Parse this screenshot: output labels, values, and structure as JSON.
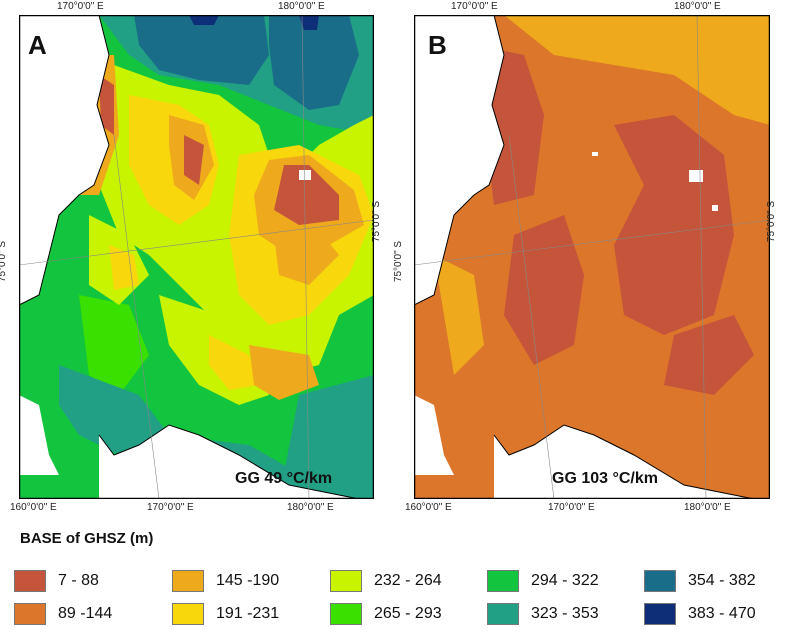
{
  "panels": [
    {
      "label": "A",
      "caption": "GG 49 °C/km",
      "top_ticks": [
        "170°0'0\" E",
        "180°0'0\" E"
      ],
      "bottom_ticks": [
        "160°0'0\" E",
        "170°0'0\" E",
        "180°0'0\" E"
      ],
      "left_tick": "75°0'0\" S",
      "right_tick": "75°0'0\" S"
    },
    {
      "label": "B",
      "caption": "GG 103 °C/km",
      "top_ticks": [
        "170°0'0\" E",
        "180°0'0\" E"
      ],
      "bottom_ticks": [
        "160°0'0\" E",
        "170°0'0\" E",
        "180°0'0\" E"
      ],
      "left_tick": "75°0'0\" S",
      "right_tick": "75°0'0\" S"
    }
  ],
  "legend": {
    "title": "BASE of GHSZ (m)",
    "classes": [
      {
        "range": "7 - 88",
        "color": "#c4553b"
      },
      {
        "range": "89 -144",
        "color": "#dc762a"
      },
      {
        "range": "145 -190",
        "color": "#eeaa1c"
      },
      {
        "range": "191 -231",
        "color": "#f8d70c"
      },
      {
        "range": "232 - 264",
        "color": "#c8f400"
      },
      {
        "range": "265 - 293",
        "color": "#3ae000"
      },
      {
        "range": "294 - 322",
        "color": "#12c43e"
      },
      {
        "range": "323 - 353",
        "color": "#21a085"
      },
      {
        "range": "354 - 382",
        "color": "#1a6d88"
      },
      {
        "range": "383 - 470",
        "color": "#0e2f78"
      }
    ]
  }
}
